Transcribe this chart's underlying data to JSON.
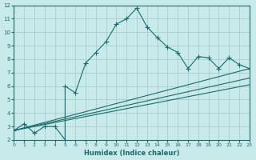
{
  "xlabel": "Humidex (Indice chaleur)",
  "ylabel": "",
  "bg_color": "#c8eaea",
  "grid_color": "#a0c8c8",
  "line_color": "#1a6b6b",
  "xlim": [
    0,
    23
  ],
  "ylim": [
    2,
    12
  ],
  "xticks": [
    0,
    1,
    2,
    3,
    4,
    5,
    6,
    7,
    8,
    9,
    10,
    11,
    12,
    13,
    14,
    15,
    16,
    17,
    18,
    19,
    20,
    21,
    22,
    23
  ],
  "yticks": [
    2,
    3,
    4,
    5,
    6,
    7,
    8,
    9,
    10,
    11,
    12
  ],
  "series1_x": [
    0,
    1,
    2,
    3,
    4,
    5,
    5,
    6,
    7,
    8,
    9,
    10,
    11,
    12,
    13,
    14,
    15,
    16,
    17,
    18,
    19,
    20,
    21,
    22,
    23
  ],
  "series1_y": [
    2.7,
    3.2,
    2.5,
    3.0,
    3.0,
    2.0,
    6.0,
    5.5,
    7.7,
    8.5,
    9.3,
    10.6,
    11.0,
    11.8,
    10.4,
    9.6,
    8.9,
    8.5,
    7.3,
    8.2,
    8.1,
    7.3,
    8.1,
    7.6,
    7.3
  ],
  "series2_x": [
    0,
    23
  ],
  "series2_y": [
    2.7,
    6.6
  ],
  "series3_x": [
    0,
    23
  ],
  "series3_y": [
    2.7,
    7.3
  ],
  "series4_x": [
    0,
    23
  ],
  "series4_y": [
    2.7,
    6.1
  ]
}
